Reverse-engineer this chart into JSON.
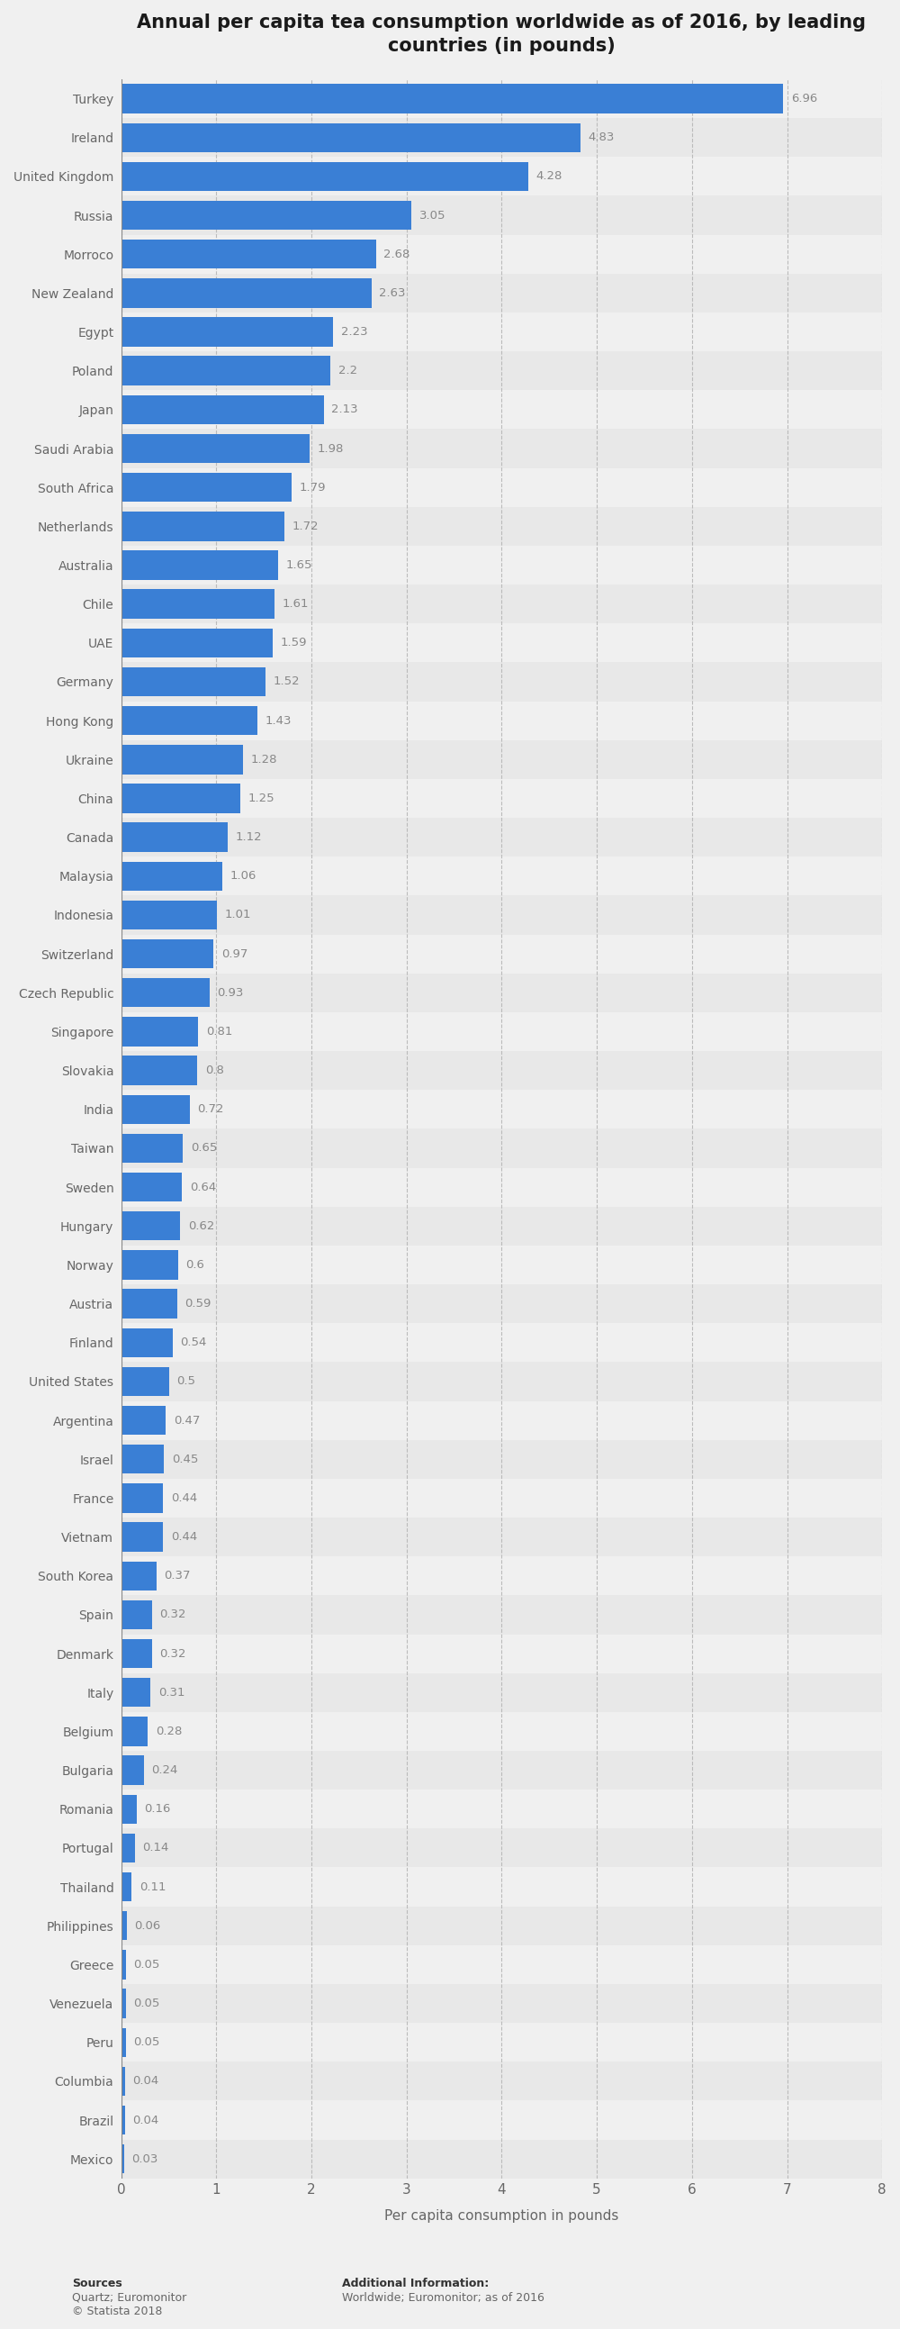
{
  "title": "Annual per capita tea consumption worldwide as of 2016, by leading\ncountries (in pounds)",
  "xlabel": "Per capita consumption in pounds",
  "bar_color": "#3a7fd5",
  "background_color": "#f0f0f0",
  "row_color_odd": "#e8e8e8",
  "row_color_even": "#f0f0f0",
  "categories": [
    "Turkey",
    "Ireland",
    "United Kingdom",
    "Russia",
    "Morroco",
    "New Zealand",
    "Egypt",
    "Poland",
    "Japan",
    "Saudi Arabia",
    "South Africa",
    "Netherlands",
    "Australia",
    "Chile",
    "UAE",
    "Germany",
    "Hong Kong",
    "Ukraine",
    "China",
    "Canada",
    "Malaysia",
    "Indonesia",
    "Switzerland",
    "Czech Republic",
    "Singapore",
    "Slovakia",
    "India",
    "Taiwan",
    "Sweden",
    "Hungary",
    "Norway",
    "Austria",
    "Finland",
    "United States",
    "Argentina",
    "Israel",
    "France",
    "Vietnam",
    "South Korea",
    "Spain",
    "Denmark",
    "Italy",
    "Belgium",
    "Bulgaria",
    "Romania",
    "Portugal",
    "Thailand",
    "Philippines",
    "Greece",
    "Venezuela",
    "Peru",
    "Columbia",
    "Brazil",
    "Mexico"
  ],
  "values": [
    6.96,
    4.83,
    4.28,
    3.05,
    2.68,
    2.63,
    2.23,
    2.2,
    2.13,
    1.98,
    1.79,
    1.72,
    1.65,
    1.61,
    1.59,
    1.52,
    1.43,
    1.28,
    1.25,
    1.12,
    1.06,
    1.01,
    0.97,
    0.93,
    0.81,
    0.8,
    0.72,
    0.65,
    0.64,
    0.62,
    0.6,
    0.59,
    0.54,
    0.5,
    0.47,
    0.45,
    0.44,
    0.44,
    0.37,
    0.32,
    0.32,
    0.31,
    0.28,
    0.24,
    0.16,
    0.14,
    0.11,
    0.06,
    0.05,
    0.05,
    0.05,
    0.04,
    0.04,
    0.03
  ],
  "value_labels": [
    "6.96",
    "4.83",
    "4.28",
    "3.05",
    "2.68",
    "2.63",
    "2.23",
    "2.2",
    "2.13",
    "1.98",
    "1.79",
    "1.72",
    "1.65",
    "1.61",
    "1.59",
    "1.52",
    "1.43",
    "1.28",
    "1.25",
    "1.12",
    "1.06",
    "1.01",
    "0.97",
    "0.93",
    "0.81",
    "0.8",
    "0.72",
    "0.65",
    "0.64",
    "0.62",
    "0.6",
    "0.59",
    "0.54",
    "0.5",
    "0.47",
    "0.45",
    "0.44",
    "0.44",
    "0.37",
    "0.32",
    "0.32",
    "0.31",
    "0.28",
    "0.24",
    "0.16",
    "0.14",
    "0.11",
    "0.06",
    "0.05",
    "0.05",
    "0.05",
    "0.04",
    "0.04",
    "0.03"
  ],
  "xlim": [
    0,
    8
  ],
  "xticks": [
    0,
    1,
    2,
    3,
    4,
    5,
    6,
    7,
    8
  ],
  "footer_left_bold": "Sources",
  "footer_left_normal": "Quartz; Euromonitor\n© Statista 2018",
  "footer_right_bold": "Additional Information:",
  "footer_right_normal": "Worldwide; Euromonitor; as of 2016"
}
